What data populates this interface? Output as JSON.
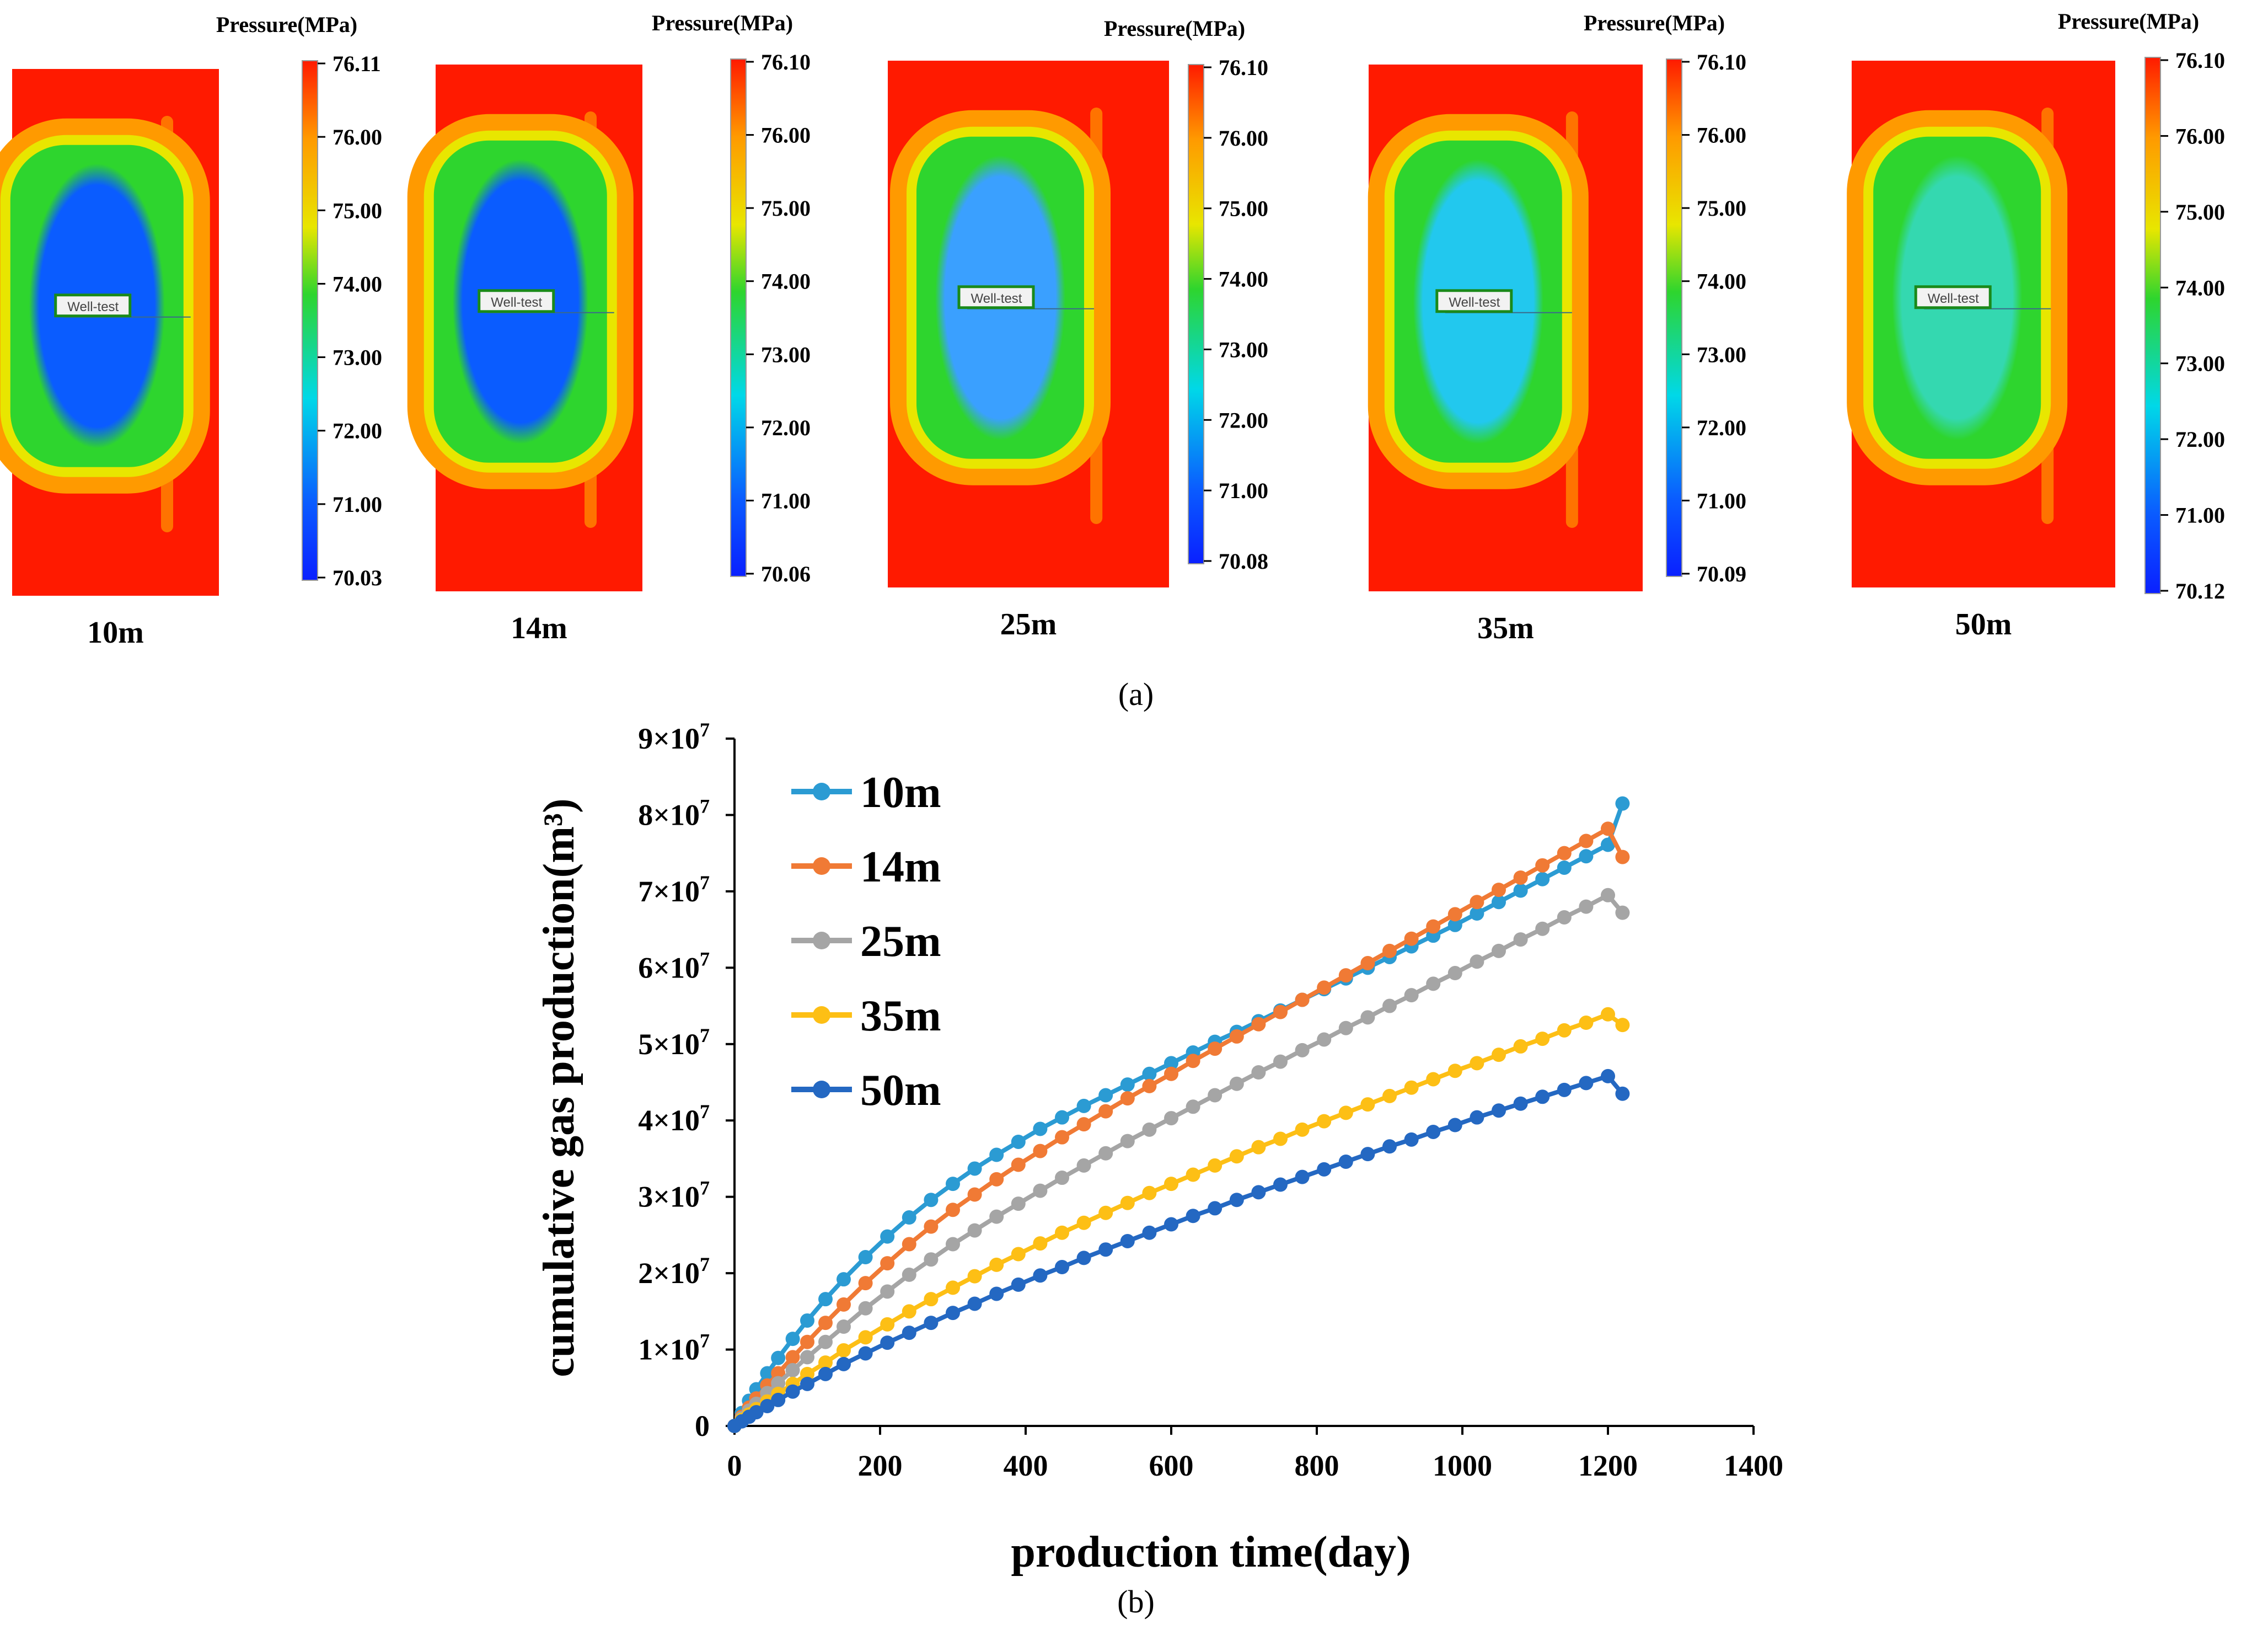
{
  "panel_a": {
    "label": "(a)",
    "colors": {
      "outer": "#ff1a00",
      "orange": "#ff9a00",
      "yellow": "#e8e600",
      "green": "#2ed52e",
      "cyan": "#00d8e8",
      "blue": "#0a5cff",
      "deep_blue": "#0a20ff",
      "label_box": "#1a8a1a"
    },
    "well_label": "Well-test",
    "panels": [
      {
        "caption": "10m",
        "colorbar_title": "Pressure(MPa)",
        "ticks": [
          "76.11",
          "76.00",
          "75.00",
          "74.00",
          "73.00",
          "72.00",
          "71.00",
          "70.03"
        ],
        "inner_level": 1.0
      },
      {
        "caption": "14m",
        "colorbar_title": "Pressure(MPa)",
        "ticks": [
          "76.10",
          "76.00",
          "75.00",
          "74.00",
          "73.00",
          "72.00",
          "71.00",
          "70.06"
        ],
        "inner_level": 0.8
      },
      {
        "caption": "25m",
        "colorbar_title": "Pressure(MPa)",
        "ticks": [
          "76.10",
          "76.00",
          "75.00",
          "74.00",
          "73.00",
          "72.00",
          "71.00",
          "70.08"
        ],
        "inner_level": 0.55
      },
      {
        "caption": "35m",
        "colorbar_title": "Pressure(MPa)",
        "ticks": [
          "76.10",
          "76.00",
          "75.00",
          "74.00",
          "73.00",
          "72.00",
          "71.00",
          "70.09"
        ],
        "inner_level": 0.4
      },
      {
        "caption": "50m",
        "colorbar_title": "Pressure(MPa)",
        "ticks": [
          "76.10",
          "76.00",
          "75.00",
          "74.00",
          "73.00",
          "72.00",
          "71.00",
          "70.12"
        ],
        "inner_level": 0.25
      }
    ]
  },
  "panel_b": {
    "label": "(b)"
  },
  "chart_data": {
    "type": "line",
    "title": "",
    "xlabel": "production time(day)",
    "ylabel": "cumulative gas production(m³)",
    "xlim": [
      0,
      1400
    ],
    "ylim": [
      0,
      90000000
    ],
    "xticks": [
      0,
      200,
      400,
      600,
      800,
      1000,
      1200,
      1400
    ],
    "xtick_labels": [
      "0",
      "200",
      "400",
      "600",
      "800",
      "1000",
      "1200",
      "1400"
    ],
    "yticks": [
      0,
      10000000,
      20000000,
      30000000,
      40000000,
      50000000,
      60000000,
      70000000,
      80000000,
      90000000
    ],
    "ytick_labels": [
      {
        "base": "0",
        "exp": ""
      },
      {
        "base": "1×10",
        "exp": "7"
      },
      {
        "base": "2×10",
        "exp": "7"
      },
      {
        "base": "3×10",
        "exp": "7"
      },
      {
        "base": "4×10",
        "exp": "7"
      },
      {
        "base": "5×10",
        "exp": "7"
      },
      {
        "base": "6×10",
        "exp": "7"
      },
      {
        "base": "7×10",
        "exp": "7"
      },
      {
        "base": "8×10",
        "exp": "7"
      },
      {
        "base": "9×10",
        "exp": "7"
      }
    ],
    "legend_position": "top-left",
    "x": [
      0,
      10,
      20,
      30,
      45,
      60,
      80,
      100,
      125,
      150,
      180,
      210,
      240,
      270,
      300,
      330,
      360,
      390,
      420,
      450,
      480,
      510,
      540,
      570,
      600,
      630,
      660,
      690,
      720,
      750,
      780,
      810,
      840,
      870,
      900,
      930,
      960,
      990,
      1020,
      1050,
      1080,
      1110,
      1140,
      1170,
      1200,
      1220
    ],
    "series": [
      {
        "name": "10m",
        "color": "#2b9bd3",
        "values": [
          0,
          1.7,
          3.3,
          4.8,
          6.9,
          8.9,
          11.4,
          13.8,
          16.6,
          19.2,
          22.1,
          24.8,
          27.3,
          29.6,
          31.7,
          33.7,
          35.5,
          37.2,
          38.9,
          40.4,
          41.9,
          43.3,
          44.7,
          46.1,
          47.5,
          48.9,
          50.3,
          51.6,
          53.0,
          54.4,
          55.8,
          57.2,
          58.6,
          60.0,
          61.4,
          62.8,
          64.2,
          65.6,
          67.1,
          68.6,
          70.1,
          71.6,
          73.1,
          74.6,
          76.1,
          81.5
        ]
      },
      {
        "name": "14m",
        "color": "#f07a35",
        "values": [
          0,
          1.2,
          2.4,
          3.6,
          5.3,
          6.9,
          9.0,
          11.0,
          13.5,
          15.9,
          18.7,
          21.3,
          23.8,
          26.1,
          28.3,
          30.3,
          32.3,
          34.2,
          36.0,
          37.8,
          39.5,
          41.2,
          42.9,
          44.5,
          46.1,
          47.8,
          49.4,
          51.0,
          52.6,
          54.2,
          55.8,
          57.4,
          59.0,
          60.6,
          62.2,
          63.8,
          65.4,
          67.0,
          68.6,
          70.2,
          71.8,
          73.4,
          75.0,
          76.6,
          78.2,
          74.5
        ]
      },
      {
        "name": "25m",
        "color": "#a5a5a5",
        "values": [
          0,
          1.0,
          2.0,
          2.9,
          4.3,
          5.6,
          7.3,
          9.0,
          11.0,
          13.0,
          15.4,
          17.6,
          19.8,
          21.8,
          23.8,
          25.6,
          27.4,
          29.1,
          30.8,
          32.5,
          34.1,
          35.7,
          37.3,
          38.8,
          40.3,
          41.8,
          43.3,
          44.8,
          46.3,
          47.7,
          49.2,
          50.6,
          52.1,
          53.5,
          55.0,
          56.4,
          57.9,
          59.3,
          60.8,
          62.2,
          63.7,
          65.1,
          66.6,
          68.0,
          69.5,
          67.2
        ]
      },
      {
        "name": "35m",
        "color": "#fdbf15",
        "values": [
          0,
          0.8,
          1.5,
          2.2,
          3.2,
          4.2,
          5.5,
          6.8,
          8.3,
          9.9,
          11.6,
          13.3,
          15.0,
          16.6,
          18.1,
          19.6,
          21.1,
          22.5,
          23.9,
          25.3,
          26.6,
          27.9,
          29.2,
          30.5,
          31.7,
          32.9,
          34.1,
          35.3,
          36.5,
          37.6,
          38.8,
          39.9,
          41.0,
          42.1,
          43.2,
          44.3,
          45.4,
          46.5,
          47.5,
          48.6,
          49.7,
          50.7,
          51.8,
          52.8,
          53.9,
          52.5
        ]
      },
      {
        "name": "50m",
        "color": "#2468c2",
        "values": [
          0,
          0.6,
          1.2,
          1.8,
          2.6,
          3.4,
          4.5,
          5.5,
          6.8,
          8.1,
          9.5,
          10.9,
          12.2,
          13.5,
          14.8,
          16.0,
          17.3,
          18.5,
          19.7,
          20.8,
          22.0,
          23.1,
          24.2,
          25.3,
          26.4,
          27.5,
          28.5,
          29.6,
          30.6,
          31.6,
          32.6,
          33.6,
          34.6,
          35.6,
          36.6,
          37.5,
          38.5,
          39.4,
          40.4,
          41.3,
          42.2,
          43.1,
          44.0,
          44.9,
          45.8,
          43.5
        ]
      }
    ],
    "value_scale": 1000000
  }
}
